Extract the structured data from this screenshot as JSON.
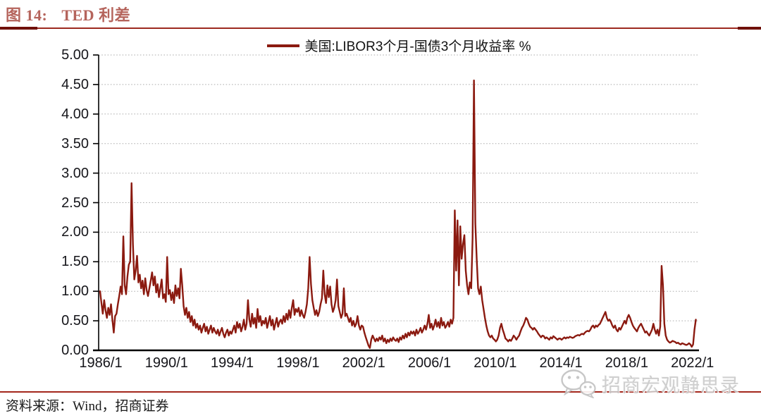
{
  "figure": {
    "label": "图 14:",
    "title": "TED 利差"
  },
  "legend": {
    "series_label": "美国:LIBOR3个月-国债3个月收益率 %"
  },
  "source": {
    "text": "资料来源：Wind，招商证券"
  },
  "watermark": {
    "icon": "wechat-icon",
    "text": "招商宏观静思录"
  },
  "colors": {
    "series": "#8b1a10",
    "title_text": "#b5645c",
    "header_rule_dark": "#70100a",
    "header_rule_mid": "#9c291f",
    "bottom_rule": "#a3271c",
    "grid": "#adadad",
    "axis": "#000000",
    "tick_label": "#15151a",
    "watermark_gray": "#c9c9c9"
  },
  "chart_data": {
    "type": "line",
    "title": "TED 利差",
    "series_name": "美国:LIBOR3个月-国债3个月收益率 %",
    "unit": "%",
    "ylim": [
      0,
      5
    ],
    "ytick_step": 0.5,
    "yticks": [
      "0.00",
      "0.50",
      "1.00",
      "1.50",
      "2.00",
      "2.50",
      "3.00",
      "3.50",
      "4.00",
      "4.50",
      "5.00"
    ],
    "xticks": [
      "1986/1",
      "1990/1",
      "1994/1",
      "1998/1",
      "2002/1",
      "2006/1",
      "2010/1",
      "2014/1",
      "2018/1",
      "2022/1"
    ],
    "grid": "dotted-horizontal",
    "legend_position": "top-center",
    "x_start_year": 1986,
    "x_end_year": 2022.33,
    "points_per_year": 12,
    "notable_points": [
      {
        "date": "1987/12",
        "value": 2.83
      },
      {
        "date": "1998/10",
        "value": 1.58
      },
      {
        "date": "2007/8",
        "value": 2.37
      },
      {
        "date": "2008/10",
        "value": 4.57
      },
      {
        "date": "2020/3",
        "value": 1.43
      }
    ],
    "values": [
      1.0,
      0.8,
      0.62,
      0.85,
      0.68,
      0.55,
      0.72,
      0.6,
      0.78,
      0.52,
      0.3,
      0.58,
      0.62,
      0.78,
      0.92,
      1.08,
      0.95,
      1.93,
      1.1,
      0.95,
      1.25,
      1.45,
      1.5,
      2.83,
      1.8,
      1.2,
      1.35,
      1.6,
      1.15,
      1.28,
      1.05,
      1.18,
      0.95,
      1.22,
      1.02,
      0.92,
      1.05,
      1.18,
      1.32,
      1.1,
      1.25,
      0.98,
      1.12,
      0.9,
      1.05,
      1.2,
      0.88,
      0.95,
      0.82,
      1.58,
      0.95,
      1.02,
      0.85,
      0.98,
      0.8,
      1.1,
      0.92,
      1.05,
      0.88,
      1.38,
      1.1,
      0.75,
      0.6,
      0.72,
      0.55,
      0.65,
      0.48,
      0.58,
      0.42,
      0.52,
      0.38,
      0.45,
      0.35,
      0.42,
      0.3,
      0.38,
      0.45,
      0.32,
      0.4,
      0.28,
      0.35,
      0.42,
      0.3,
      0.38,
      0.32,
      0.28,
      0.35,
      0.25,
      0.32,
      0.38,
      0.28,
      0.22,
      0.3,
      0.35,
      0.25,
      0.32,
      0.28,
      0.35,
      0.42,
      0.3,
      0.48,
      0.38,
      0.45,
      0.32,
      0.4,
      0.52,
      0.35,
      0.45,
      0.85,
      0.52,
      0.4,
      0.62,
      0.45,
      0.55,
      0.38,
      0.7,
      0.48,
      0.58,
      0.42,
      0.5,
      0.45,
      0.55,
      0.38,
      0.48,
      0.58,
      0.42,
      0.52,
      0.35,
      0.45,
      0.55,
      0.4,
      0.48,
      0.52,
      0.45,
      0.58,
      0.48,
      0.62,
      0.52,
      0.68,
      0.55,
      0.72,
      0.85,
      0.6,
      0.7,
      0.65,
      0.72,
      0.58,
      0.68,
      0.6,
      0.55,
      0.65,
      0.78,
      1.05,
      1.58,
      1.12,
      0.85,
      0.72,
      0.6,
      0.68,
      0.58,
      0.65,
      0.78,
      0.88,
      1.35,
      0.95,
      0.8,
      1.1,
      0.9,
      1.08,
      0.78,
      0.65,
      0.72,
      0.85,
      1.2,
      0.75,
      0.65,
      0.55,
      0.62,
      1.05,
      0.58,
      0.62,
      0.55,
      0.48,
      0.55,
      0.42,
      0.5,
      0.4,
      0.45,
      0.58,
      0.42,
      0.35,
      0.42,
      0.4,
      0.3,
      0.22,
      0.15,
      0.08,
      0.04,
      0.18,
      0.25,
      0.2,
      0.15,
      0.2,
      0.16,
      0.22,
      0.18,
      0.25,
      0.15,
      0.2,
      0.12,
      0.18,
      0.14,
      0.2,
      0.16,
      0.22,
      0.18,
      0.16,
      0.2,
      0.14,
      0.22,
      0.18,
      0.25,
      0.2,
      0.28,
      0.22,
      0.3,
      0.25,
      0.32,
      0.28,
      0.32,
      0.25,
      0.35,
      0.28,
      0.32,
      0.38,
      0.3,
      0.35,
      0.42,
      0.35,
      0.45,
      0.6,
      0.38,
      0.45,
      0.35,
      0.42,
      0.52,
      0.4,
      0.48,
      0.38,
      0.55,
      0.42,
      0.48,
      0.38,
      0.42,
      0.48,
      0.4,
      0.52,
      0.45,
      0.55,
      2.37,
      1.35,
      2.2,
      1.1,
      2.1,
      1.55,
      1.8,
      1.95,
      1.35,
      1.1,
      0.95,
      1.15,
      1.05,
      1.9,
      4.57,
      2.15,
      1.55,
      1.05,
      0.95,
      1.08,
      0.85,
      0.7,
      0.55,
      0.42,
      0.32,
      0.25,
      0.22,
      0.25,
      0.2,
      0.18,
      0.15,
      0.18,
      0.25,
      0.38,
      0.45,
      0.35,
      0.28,
      0.2,
      0.18,
      0.15,
      0.18,
      0.16,
      0.2,
      0.25,
      0.22,
      0.18,
      0.22,
      0.25,
      0.32,
      0.38,
      0.42,
      0.48,
      0.55,
      0.52,
      0.45,
      0.4,
      0.38,
      0.35,
      0.38,
      0.35,
      0.32,
      0.28,
      0.25,
      0.22,
      0.25,
      0.24,
      0.2,
      0.22,
      0.2,
      0.18,
      0.22,
      0.2,
      0.24,
      0.22,
      0.2,
      0.18,
      0.2,
      0.2,
      0.18,
      0.2,
      0.22,
      0.2,
      0.22,
      0.21,
      0.23,
      0.22,
      0.21,
      0.22,
      0.24,
      0.25,
      0.26,
      0.25,
      0.27,
      0.28,
      0.27,
      0.3,
      0.32,
      0.33,
      0.32,
      0.35,
      0.4,
      0.42,
      0.38,
      0.42,
      0.4,
      0.43,
      0.45,
      0.5,
      0.55,
      0.6,
      0.65,
      0.55,
      0.5,
      0.52,
      0.48,
      0.42,
      0.38,
      0.42,
      0.35,
      0.32,
      0.38,
      0.35,
      0.4,
      0.45,
      0.5,
      0.45,
      0.55,
      0.6,
      0.55,
      0.48,
      0.42,
      0.38,
      0.35,
      0.32,
      0.38,
      0.42,
      0.45,
      0.4,
      0.35,
      0.3,
      0.32,
      0.28,
      0.25,
      0.3,
      0.35,
      0.45,
      0.35,
      0.28,
      0.35,
      0.25,
      0.4,
      1.43,
      1.1,
      0.45,
      0.25,
      0.18,
      0.15,
      0.13,
      0.14,
      0.16,
      0.15,
      0.14,
      0.12,
      0.13,
      0.11,
      0.1,
      0.12,
      0.11,
      0.1,
      0.09,
      0.1,
      0.12,
      0.1,
      0.06,
      0.1,
      0.35,
      0.52
    ]
  }
}
